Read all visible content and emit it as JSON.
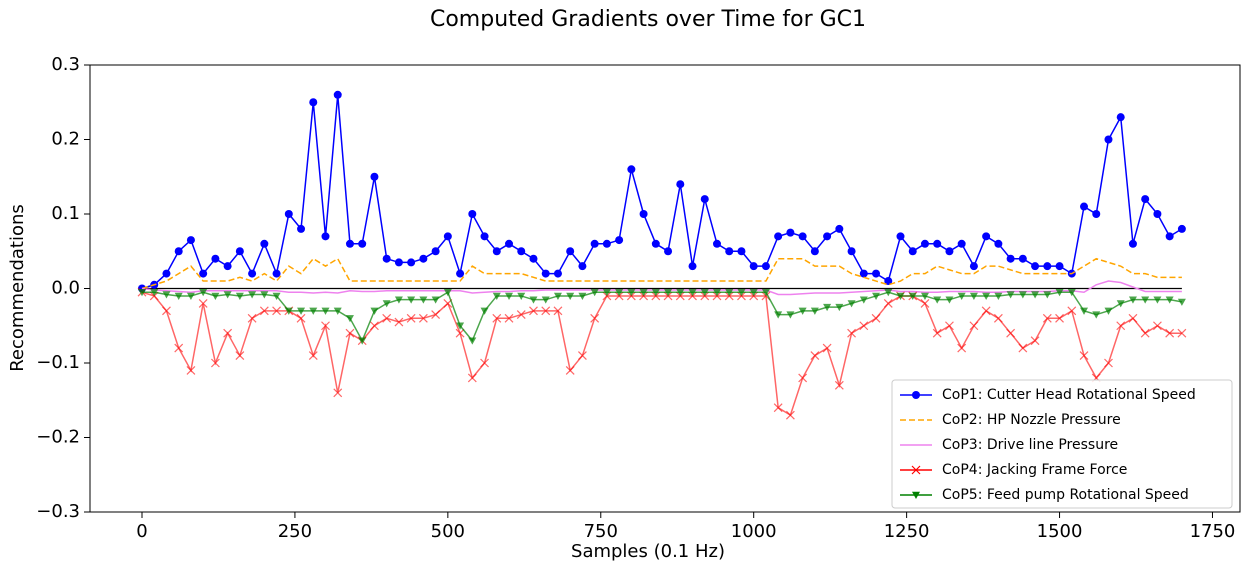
{
  "chart_data": {
    "type": "line",
    "title": "Computed Gradients over Time for GC1",
    "x_label": "Samples (0.1 Hz)",
    "y_label": "Recommendations",
    "xlim": [
      -85,
      1795
    ],
    "ylim": [
      -0.3,
      0.3
    ],
    "xticks": [
      0,
      250,
      500,
      750,
      1000,
      1250,
      1500,
      1750
    ],
    "yticks": [
      {
        "value": -0.3,
        "label": "−0.3"
      },
      {
        "value": -0.2,
        "label": "−0.2"
      },
      {
        "value": -0.1,
        "label": "−0.1"
      },
      {
        "value": 0,
        "label": "0.0"
      },
      0.1,
      0.2,
      0.3
    ],
    "hline": 0,
    "legend": "lower right",
    "x": [
      0,
      20,
      40,
      60,
      80,
      100,
      120,
      140,
      160,
      180,
      200,
      220,
      240,
      260,
      280,
      300,
      320,
      340,
      360,
      380,
      400,
      420,
      440,
      460,
      480,
      500,
      520,
      540,
      560,
      580,
      600,
      620,
      640,
      660,
      680,
      700,
      720,
      740,
      760,
      780,
      800,
      820,
      840,
      860,
      880,
      900,
      920,
      940,
      960,
      980,
      1000,
      1020,
      1040,
      1060,
      1080,
      1100,
      1120,
      1140,
      1160,
      1180,
      1200,
      1220,
      1240,
      1260,
      1280,
      1300,
      1320,
      1340,
      1360,
      1380,
      1400,
      1420,
      1440,
      1460,
      1480,
      1500,
      1520,
      1540,
      1560,
      1580,
      1600,
      1620,
      1640,
      1660,
      1680,
      1700
    ],
    "series": [
      {
        "name": "CoP1: Cutter Head Rotational Speed",
        "color": "#0000ff",
        "marker": "o",
        "linestyle": "solid",
        "values": [
          0,
          0.005,
          0.02,
          0.05,
          0.065,
          0.02,
          0.04,
          0.03,
          0.05,
          0.02,
          0.06,
          0.02,
          0.1,
          0.08,
          0.25,
          0.07,
          0.26,
          0.06,
          0.06,
          0.15,
          0.04,
          0.035,
          0.035,
          0.04,
          0.05,
          0.07,
          0.02,
          0.1,
          0.07,
          0.05,
          0.06,
          0.05,
          0.04,
          0.02,
          0.02,
          0.05,
          0.03,
          0.06,
          0.06,
          0.065,
          0.16,
          0.1,
          0.06,
          0.05,
          0.14,
          0.03,
          0.12,
          0.06,
          0.05,
          0.05,
          0.03,
          0.03,
          0.07,
          0.075,
          0.07,
          0.05,
          0.07,
          0.08,
          0.05,
          0.02,
          0.02,
          0.01,
          0.07,
          0.05,
          0.06,
          0.06,
          0.05,
          0.06,
          0.03,
          0.07,
          0.06,
          0.04,
          0.04,
          0.03,
          0.03,
          0.03,
          0.02,
          0.11,
          0.1,
          0.2,
          0.23,
          0.06,
          0.12,
          0.1,
          0.07,
          0.08
        ]
      },
      {
        "name": "CoP2: HP Nozzle Pressure",
        "color": "#ffa500",
        "marker": "none",
        "linestyle": "dashed",
        "values": [
          0,
          0.005,
          0.01,
          0.02,
          0.03,
          0.01,
          0.01,
          0.01,
          0.015,
          0.01,
          0.02,
          0.01,
          0.03,
          0.02,
          0.04,
          0.03,
          0.04,
          0.01,
          0.01,
          0.01,
          0.01,
          0.01,
          0.01,
          0.01,
          0.01,
          0.01,
          0.01,
          0.03,
          0.02,
          0.02,
          0.02,
          0.02,
          0.015,
          0.01,
          0.01,
          0.01,
          0.01,
          0.01,
          0.01,
          0.01,
          0.01,
          0.01,
          0.01,
          0.01,
          0.01,
          0.01,
          0.01,
          0.01,
          0.01,
          0.01,
          0.01,
          0.01,
          0.04,
          0.04,
          0.04,
          0.03,
          0.03,
          0.03,
          0.02,
          0.015,
          0.01,
          0.005,
          0.01,
          0.02,
          0.02,
          0.03,
          0.025,
          0.02,
          0.02,
          0.03,
          0.03,
          0.025,
          0.02,
          0.02,
          0.02,
          0.02,
          0.02,
          0.03,
          0.04,
          0.035,
          0.03,
          0.02,
          0.02,
          0.015,
          0.015,
          0.015
        ]
      },
      {
        "name": "CoP3: Drive line Pressure",
        "color": "#ee82ee",
        "marker": "none",
        "linestyle": "solid",
        "values": [
          0,
          -0.002,
          -0.003,
          -0.004,
          -0.005,
          -0.003,
          -0.003,
          -0.003,
          -0.003,
          -0.003,
          -0.003,
          -0.003,
          -0.005,
          -0.005,
          -0.006,
          -0.005,
          -0.006,
          -0.003,
          -0.004,
          -0.004,
          -0.003,
          -0.003,
          -0.003,
          -0.003,
          -0.003,
          -0.003,
          -0.003,
          -0.006,
          -0.005,
          -0.004,
          -0.004,
          -0.003,
          -0.003,
          -0.002,
          -0.002,
          -0.002,
          -0.002,
          -0.002,
          -0.002,
          -0.002,
          -0.002,
          -0.002,
          -0.002,
          -0.002,
          -0.002,
          -0.002,
          -0.002,
          -0.002,
          -0.002,
          -0.002,
          -0.002,
          -0.002,
          -0.008,
          -0.008,
          -0.007,
          -0.006,
          -0.006,
          -0.006,
          -0.005,
          -0.004,
          -0.003,
          -0.002,
          -0.004,
          -0.004,
          -0.005,
          -0.005,
          -0.004,
          -0.004,
          -0.004,
          -0.005,
          -0.005,
          -0.004,
          -0.004,
          -0.004,
          -0.004,
          -0.003,
          -0.003,
          -0.005,
          0.005,
          0.01,
          0.008,
          0.002,
          -0.004,
          -0.004,
          -0.004,
          -0.004
        ]
      },
      {
        "name": "CoP4: Jacking Frame Force",
        "color": "#ff0000",
        "marker": "x",
        "linestyle": "solid",
        "values": [
          -0.005,
          -0.01,
          -0.03,
          -0.08,
          -0.11,
          -0.02,
          -0.1,
          -0.06,
          -0.09,
          -0.04,
          -0.03,
          -0.03,
          -0.03,
          -0.04,
          -0.09,
          -0.05,
          -0.14,
          -0.06,
          -0.07,
          -0.05,
          -0.04,
          -0.045,
          -0.04,
          -0.04,
          -0.035,
          -0.02,
          -0.06,
          -0.12,
          -0.1,
          -0.04,
          -0.04,
          -0.035,
          -0.03,
          -0.03,
          -0.03,
          -0.11,
          -0.09,
          -0.04,
          -0.01,
          -0.01,
          -0.01,
          -0.01,
          -0.01,
          -0.01,
          -0.01,
          -0.01,
          -0.01,
          -0.01,
          -0.01,
          -0.01,
          -0.01,
          -0.01,
          -0.16,
          -0.17,
          -0.12,
          -0.09,
          -0.08,
          -0.13,
          -0.06,
          -0.05,
          -0.04,
          -0.02,
          -0.01,
          -0.01,
          -0.02,
          -0.06,
          -0.05,
          -0.08,
          -0.05,
          -0.03,
          -0.04,
          -0.06,
          -0.08,
          -0.07,
          -0.04,
          -0.04,
          -0.03,
          -0.09,
          -0.12,
          -0.1,
          -0.05,
          -0.04,
          -0.06,
          -0.05,
          -0.06,
          -0.06
        ]
      },
      {
        "name": "CoP5: Feed pump Rotational Speed",
        "color": "#008000",
        "marker": "v",
        "linestyle": "solid",
        "values": [
          -0.005,
          -0.005,
          -0.008,
          -0.01,
          -0.01,
          -0.005,
          -0.01,
          -0.008,
          -0.01,
          -0.008,
          -0.008,
          -0.01,
          -0.03,
          -0.03,
          -0.03,
          -0.03,
          -0.03,
          -0.04,
          -0.07,
          -0.03,
          -0.02,
          -0.015,
          -0.015,
          -0.015,
          -0.015,
          -0.005,
          -0.05,
          -0.07,
          -0.03,
          -0.01,
          -0.01,
          -0.01,
          -0.015,
          -0.015,
          -0.01,
          -0.01,
          -0.01,
          -0.005,
          -0.005,
          -0.005,
          -0.005,
          -0.005,
          -0.005,
          -0.005,
          -0.005,
          -0.005,
          -0.005,
          -0.005,
          -0.005,
          -0.005,
          -0.005,
          -0.005,
          -0.035,
          -0.035,
          -0.03,
          -0.03,
          -0.025,
          -0.025,
          -0.02,
          -0.015,
          -0.01,
          -0.005,
          -0.01,
          -0.01,
          -0.01,
          -0.015,
          -0.015,
          -0.01,
          -0.01,
          -0.01,
          -0.01,
          -0.008,
          -0.008,
          -0.008,
          -0.008,
          -0.005,
          -0.005,
          -0.03,
          -0.035,
          -0.03,
          -0.02,
          -0.015,
          -0.015,
          -0.015,
          -0.015,
          -0.018
        ]
      }
    ]
  }
}
